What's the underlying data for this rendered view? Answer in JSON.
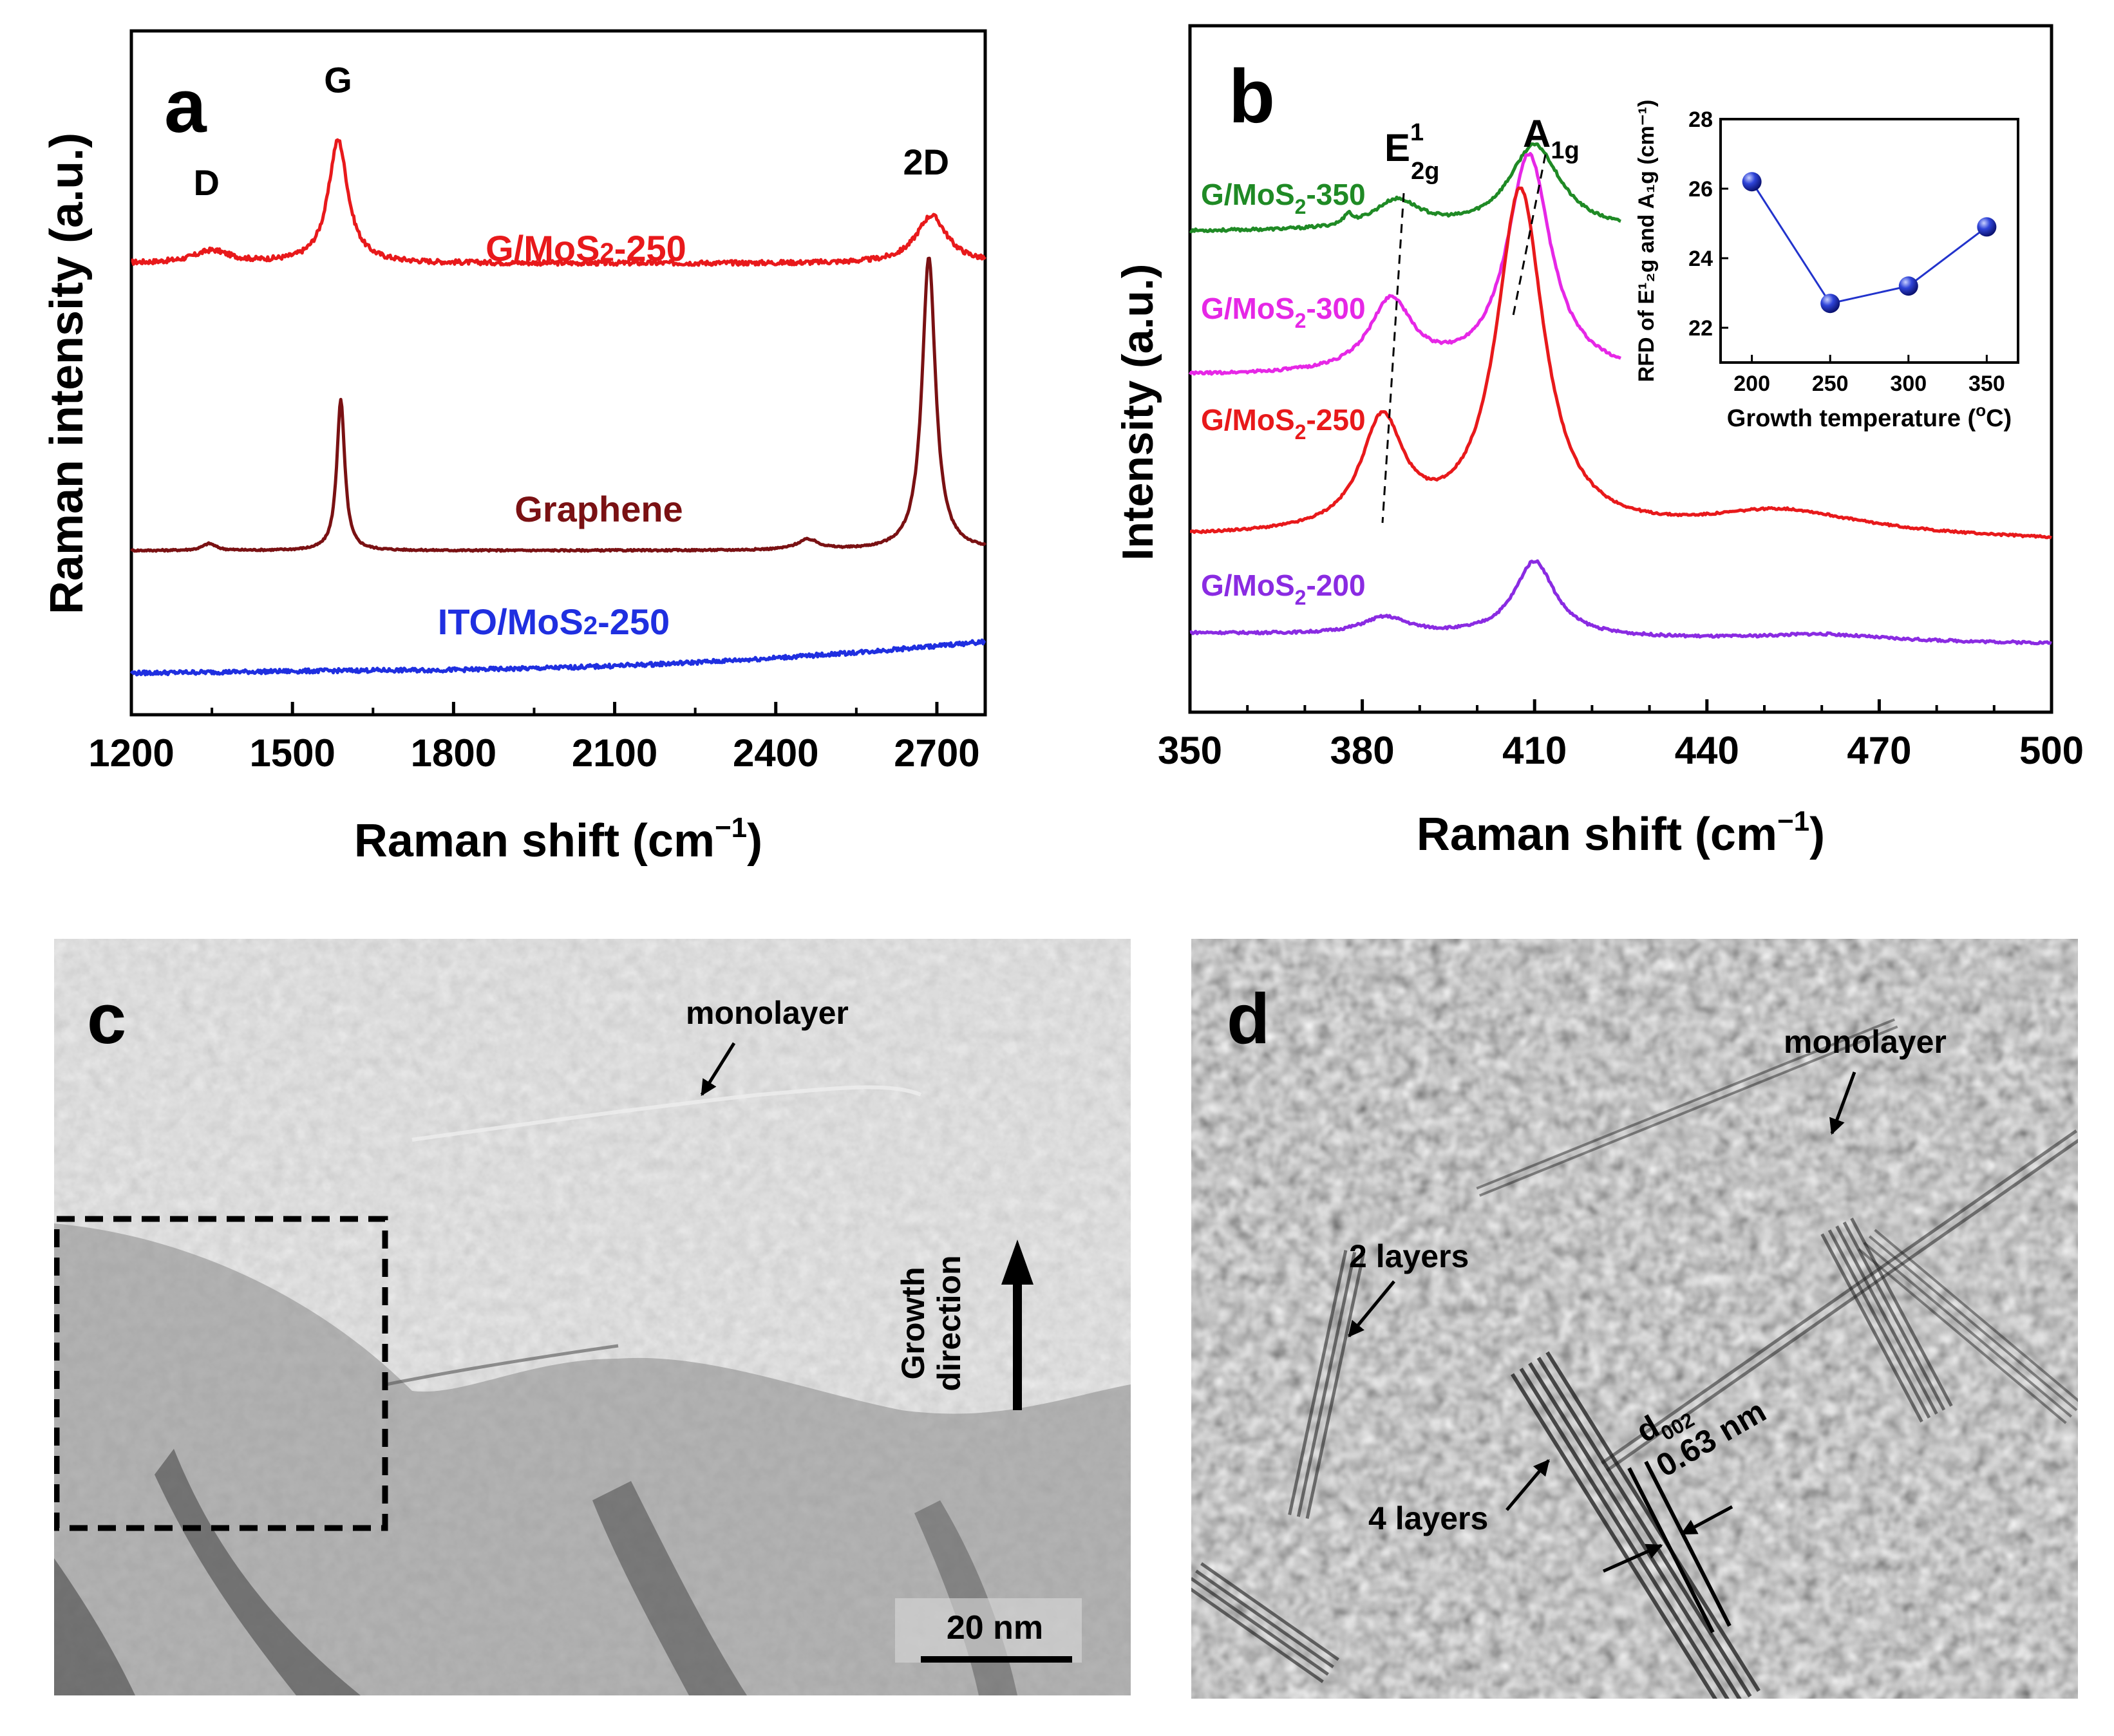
{
  "colors": {
    "red": "#e8191b",
    "darkred": "#7a1113",
    "blue": "#1f2fe0",
    "green": "#1f8a25",
    "magenta": "#e627e6",
    "purple": "#8a2be2",
    "inset_marker": "#2233cc"
  },
  "chart_data": [
    {
      "panel": "a",
      "type": "line",
      "title": "",
      "xlabel_main": "Raman shift (cm",
      "xlabel_sup": "−1",
      "xlabel_tail": ")",
      "ylabel": "Raman intensity (a.u.)",
      "xlim": [
        1200,
        2790
      ],
      "xticks": [
        1200,
        1500,
        1800,
        2100,
        2400,
        2700
      ],
      "xtick_labels": [
        "1200",
        "1500",
        "1800",
        "2100",
        "2400",
        "2700"
      ],
      "ylim": [
        0,
        100
      ],
      "series": [
        {
          "name": "G/MoS2-250",
          "label_main": "G/MoS",
          "label_sub": "2",
          "label_tail": "-250",
          "color": "#e8191b",
          "offset": 66,
          "baseline": 0,
          "noise": 0.35,
          "peaks": [
            [
              1350,
              1.8,
              40
            ],
            [
              1585,
              18,
              22
            ],
            [
              2690,
              7,
              35
            ]
          ]
        },
        {
          "name": "Graphene",
          "label_main": "Graphene",
          "label_sub": "",
          "label_tail": "",
          "color": "#7a1113",
          "offset": 24,
          "baseline": 0,
          "noise": 0.12,
          "peaks": [
            [
              1345,
              1.0,
              15
            ],
            [
              1590,
              22,
              9
            ],
            [
              2460,
              1.5,
              25
            ],
            [
              2685,
              43,
              15
            ]
          ]
        },
        {
          "name": "ITO/MoS2-250",
          "label_main": "ITO/MoS",
          "label_sub": "2",
          "label_tail": "-250",
          "color": "#1f2fe0",
          "offset": 6.5,
          "baseline": 1,
          "noise": 0.3,
          "peaks": []
        }
      ],
      "peak_labels": [
        {
          "text": "D",
          "x": 1340,
          "y": 76
        },
        {
          "text": "G",
          "x": 1585,
          "y": 91
        },
        {
          "text": "2D",
          "x": 2680,
          "y": 79
        }
      ]
    },
    {
      "panel": "b",
      "type": "line",
      "xlabel_main": "Raman shift (cm",
      "xlabel_sup": "−1",
      "xlabel_tail": ")",
      "ylabel": "Intensity (a.u.)",
      "xlim": [
        350,
        500
      ],
      "xticks": [
        350,
        380,
        410,
        440,
        470,
        500
      ],
      "xtick_labels": [
        "350",
        "380",
        "410",
        "440",
        "470",
        "500"
      ],
      "ylim": [
        0,
        100
      ],
      "series": [
        {
          "name": "G/MoS2-350",
          "label_main": "G/MoS",
          "label_sub": "2",
          "label_tail": "-350",
          "color": "#1f8a25",
          "x_end": 425,
          "offset": 70,
          "noise": 0.2,
          "peaks": [
            [
              377.5,
              1.5,
              0.8
            ],
            [
              386,
              4.2,
              5
            ],
            [
              410,
              12.5,
              5.5
            ]
          ]
        },
        {
          "name": "G/MoS2-300",
          "label_main": "G/MoS",
          "label_sub": "2",
          "label_tail": "-300",
          "color": "#e627e6",
          "x_end": 425,
          "offset": 49,
          "noise": 0.2,
          "peaks": [
            [
              385,
              10.5,
              4.5
            ],
            [
              409,
              32,
              4.6
            ]
          ]
        },
        {
          "name": "G/MoS2-250",
          "label_main": "G/MoS",
          "label_sub": "2",
          "label_tail": "-250",
          "color": "#e8191b",
          "x_end": 500,
          "offset": 25.5,
          "noise": 0.15,
          "peaks": [
            [
              383.5,
              16,
              4.5
            ],
            [
              407.5,
              50,
              5
            ],
            [
              453,
              3.5,
              16
            ]
          ]
        },
        {
          "name": "G/MoS2-200",
          "label_main": "G/MoS",
          "label_sub": "2",
          "label_tail": "-200",
          "color": "#8a2be2",
          "x_end": 500,
          "offset": 11.5,
          "noise": 0.18,
          "peaks": [
            [
              384,
              2.5,
              5
            ],
            [
              410,
              11,
              4.3
            ],
            [
              460,
              0.9,
              12
            ]
          ]
        }
      ],
      "peak_label_E": "E",
      "peak_label_E_sup": "1",
      "peak_label_E_sub": "2g",
      "peak_label_A": "A",
      "peak_label_A_sub": "1g",
      "inset": {
        "type": "scatter",
        "xlabel_main": "Growth temperature (",
        "xlabel_sup": "o",
        "xlabel_tail": "C)",
        "ylabel": "RFD of E¹₂g and A₁g (cm⁻¹)",
        "xlim": [
          180,
          370
        ],
        "ylim": [
          21,
          28
        ],
        "xticks": [
          200,
          250,
          300,
          350
        ],
        "xtick_labels": [
          "200",
          "250",
          "300",
          "350"
        ],
        "yticks": [
          22,
          24,
          26,
          28
        ],
        "ytick_labels": [
          "22",
          "24",
          "26",
          "28"
        ],
        "x": [
          200,
          250,
          300,
          350
        ],
        "y": [
          26.2,
          22.7,
          23.2,
          24.9
        ]
      }
    }
  ],
  "panel_c": {
    "letter": "c",
    "label_monolayer": "monolayer",
    "label_growth_line1": "Growth",
    "label_growth_line2": "direction",
    "scalebar": "20 nm"
  },
  "panel_d": {
    "letter": "d",
    "label_monolayer": "monolayer",
    "label_2layers": "2 layers",
    "label_4layers": "4 layers",
    "label_d": "d",
    "label_d_sub": "002",
    "label_spacing": "0.63 nm"
  }
}
